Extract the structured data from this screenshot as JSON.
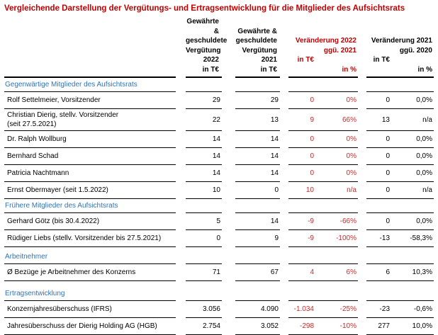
{
  "title": "Vergleichende Darstellung der Vergütungs- und Ertragsentwicklung für die Mitglieder des Aufsichtsrats",
  "colors": {
    "title_red": "#C00000",
    "section_blue": "#2E74B5",
    "number_red": "#C72B2B"
  },
  "header": {
    "granted_2022": {
      "lines": [
        "Gewährte &",
        "geschuldete",
        "Vergütung",
        "2022"
      ],
      "unit": "in T€"
    },
    "granted_2021": {
      "lines": [
        "Gewährte &",
        "geschuldete",
        "Vergütung",
        "2021"
      ],
      "unit": "in T€"
    },
    "change_2022": {
      "lines": [
        "Veränderung 2022",
        "ggü. 2021"
      ],
      "unit_te": "in T€",
      "unit_pct": "in %"
    },
    "change_2021": {
      "lines": [
        "Veränderung 2021",
        "ggü. 2020"
      ],
      "unit_te": "in T€",
      "unit_pct": "in %"
    }
  },
  "sections": [
    {
      "label": "Gegenwärtige Mitglieder des Aufsichtsrats",
      "rows": [
        {
          "name": "Rolf Settelmeier, Vorsitzender",
          "v2022": "29",
          "v2021": "29",
          "change_te": "0",
          "change_pct": "0%",
          "prev_te": "0",
          "prev_pct": "0,0%"
        },
        {
          "name": "Christian Dierig, stellv. Vorsitzender\n(seit 27.5.2021)",
          "v2022": "22",
          "v2021": "13",
          "change_te": "9",
          "change_pct": "66%",
          "prev_te": "13",
          "prev_pct": "n/a"
        },
        {
          "name": "Dr. Ralph Wollburg",
          "v2022": "14",
          "v2021": "14",
          "change_te": "0",
          "change_pct": "0%",
          "prev_te": "0",
          "prev_pct": "0,0%"
        },
        {
          "name": "Bernhard Schad",
          "v2022": "14",
          "v2021": "14",
          "change_te": "0",
          "change_pct": "0%",
          "prev_te": "0",
          "prev_pct": "0,0%"
        },
        {
          "name": "Patricia Nachtmann",
          "v2022": "14",
          "v2021": "14",
          "change_te": "0",
          "change_pct": "0%",
          "prev_te": "0",
          "prev_pct": "0,0%"
        },
        {
          "name": "Ernst Obermayer (seit 1.5.2022)",
          "v2022": "10",
          "v2021": "0",
          "change_te": "10",
          "change_pct": "n/a",
          "prev_te": "0",
          "prev_pct": "n/a"
        }
      ]
    },
    {
      "label": "Frühere Mitglieder des Aufsichtsrats",
      "rows": [
        {
          "name": "Gerhard Götz (bis 30.4.2022)",
          "v2022": "5",
          "v2021": "14",
          "change_te": "-9",
          "change_pct": "-66%",
          "prev_te": "0",
          "prev_pct": "0,0%"
        },
        {
          "name": "Rüdiger Liebs (stellv. Vorsitzender bis 27.5.2021)",
          "v2022": "0",
          "v2021": "9",
          "change_te": "-9",
          "change_pct": "-100%",
          "prev_te": "-13",
          "prev_pct": "-58,3%"
        }
      ]
    },
    {
      "label": "Arbeitnehmer",
      "rows": [
        {
          "name": "Ø Bezüge je Arbeitnehmer des Konzerns",
          "v2022": "71",
          "v2021": "67",
          "change_te": "4",
          "change_pct": "6%",
          "prev_te": "6",
          "prev_pct": "10,3%"
        }
      ]
    },
    {
      "label": "Ertragsentwicklung",
      "rows": [
        {
          "name": "Konzernjahresüberschuss (IFRS)",
          "v2022": "3.056",
          "v2021": "4.090",
          "change_te": "-1.034",
          "change_pct": "-25%",
          "prev_te": "-23",
          "prev_pct": "-0,6%"
        },
        {
          "name": "Jahresüberschuss der Dierig Holding AG (HGB)",
          "v2022": "2.754",
          "v2021": "3.052",
          "change_te": "-298",
          "change_pct": "-10%",
          "prev_te": "277",
          "prev_pct": "10,0%"
        }
      ]
    }
  ]
}
